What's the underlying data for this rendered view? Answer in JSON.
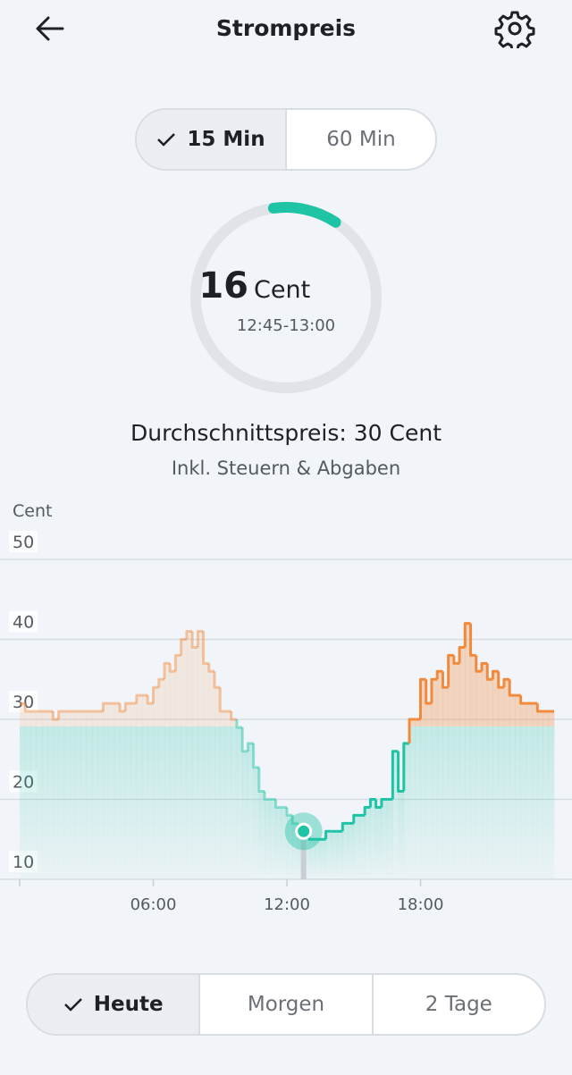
{
  "header": {
    "title": "Strompreis"
  },
  "interval_toggle": {
    "options": [
      "15 Min",
      "60 Min"
    ],
    "selected": 0
  },
  "current_price": {
    "value": 16,
    "unit": "Cent",
    "time": "12:45-13:00"
  },
  "average_text": "Durchschnittspreis: 30 Cent",
  "tax_note": "Inkl. Steuern & Abgaben",
  "chart_data": {
    "type": "step-line",
    "y_label": "Cent",
    "xlim": [
      0,
      24
    ],
    "xticks": [
      {
        "value": 6,
        "label": "06:00"
      },
      {
        "value": 12,
        "label": "12:00"
      },
      {
        "value": 18,
        "label": "18:00"
      }
    ],
    "ylim": [
      10,
      50
    ],
    "yticks": [
      10,
      20,
      30,
      40,
      50
    ],
    "grid": true,
    "colors": {
      "above": "#f28a3c",
      "below": "#1fc3a5"
    },
    "values": [
      32,
      31,
      31,
      31,
      31,
      31,
      30,
      31,
      31,
      31,
      31,
      31,
      31,
      31,
      31,
      32,
      32,
      32,
      31,
      32,
      32,
      33,
      33,
      32,
      34,
      35,
      37,
      36,
      38,
      40,
      41,
      39,
      41,
      37,
      36,
      34,
      31,
      31,
      30,
      29,
      26,
      27,
      24,
      21,
      20,
      20,
      19,
      19,
      18,
      17,
      16,
      16,
      15,
      15,
      15,
      16,
      16,
      16,
      17,
      17,
      18,
      18,
      19,
      20,
      19,
      20,
      20,
      26,
      21,
      27,
      30,
      30,
      35,
      32,
      35,
      36,
      34,
      38,
      37,
      39,
      42,
      38,
      36,
      37,
      35,
      36,
      34,
      35,
      33,
      33,
      32,
      32,
      32,
      31,
      31,
      31
    ]
  },
  "day_toggle": {
    "options": [
      "Heute",
      "Morgen",
      "2 Tage"
    ],
    "selected": 0
  }
}
